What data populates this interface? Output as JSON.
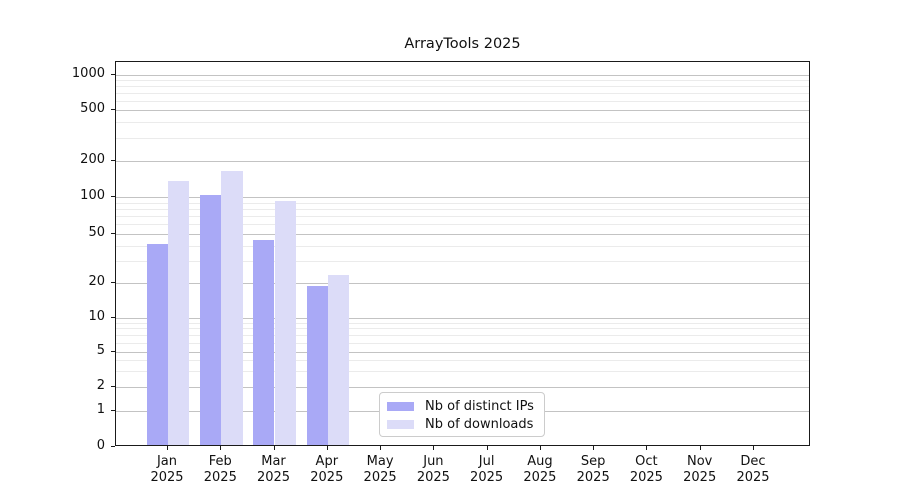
{
  "title": "ArrayTools 2025",
  "chart_data": {
    "type": "bar",
    "title": "ArrayTools 2025",
    "categories": [
      "Jan 2025",
      "Feb 2025",
      "Mar 2025",
      "Apr 2025",
      "May 2025",
      "Jun 2025",
      "Jul 2025",
      "Aug 2025",
      "Sep 2025",
      "Oct 2025",
      "Nov 2025",
      "Dec 2025"
    ],
    "series": [
      {
        "name": "Nb of distinct IPs",
        "color": "#a9a9f6",
        "values": [
          40,
          100,
          43,
          18,
          0,
          0,
          0,
          0,
          0,
          0,
          0,
          0
        ]
      },
      {
        "name": "Nb of downloads",
        "color": "#dcdcf8",
        "values": [
          130,
          158,
          90,
          22,
          0,
          0,
          0,
          0,
          0,
          0,
          0,
          0
        ]
      }
    ],
    "yscale": "symlog",
    "yticks": [
      0,
      1,
      2,
      5,
      10,
      20,
      50,
      100,
      200,
      500,
      1000
    ],
    "ylim": [
      0,
      1200
    ],
    "grid": true,
    "legend_position": "lower center"
  },
  "axis": {
    "months": [
      "Jan",
      "Feb",
      "Mar",
      "Apr",
      "May",
      "Jun",
      "Jul",
      "Aug",
      "Sep",
      "Oct",
      "Nov",
      "Dec"
    ],
    "year": "2025",
    "ytick_labels": [
      "1000",
      "500",
      "200",
      "100",
      "50",
      "20",
      "10",
      "5",
      "2",
      "1",
      "0"
    ]
  },
  "legend": {
    "items": [
      {
        "label": "Nb of distinct IPs",
        "color": "#a9a9f6"
      },
      {
        "label": "Nb of downloads",
        "color": "#dcdcf8"
      }
    ]
  }
}
